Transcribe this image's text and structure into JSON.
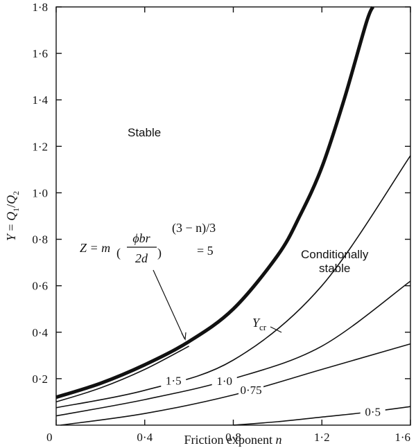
{
  "chart_data": {
    "type": "line",
    "xlabel": "Friction exponent n",
    "ylabel": "Y = Q1/Q2",
    "xlim": [
      0,
      1.6
    ],
    "ylim": [
      0,
      1.8
    ],
    "grid": false,
    "x_ticks": [
      {
        "value": 0,
        "label": "0"
      },
      {
        "value": 0.4,
        "label": "0·4"
      },
      {
        "value": 0.8,
        "label": "0·8"
      },
      {
        "value": 1.2,
        "label": "1·2"
      },
      {
        "value": 1.6,
        "label": "1·6"
      }
    ],
    "y_ticks": [
      {
        "value": 0.2,
        "label": "0·2"
      },
      {
        "value": 0.4,
        "label": "0·4"
      },
      {
        "value": 0.6,
        "label": "0·6"
      },
      {
        "value": 0.8,
        "label": "0·8"
      },
      {
        "value": 1.0,
        "label": "1·0"
      },
      {
        "value": 1.2,
        "label": "1·2"
      },
      {
        "value": 1.4,
        "label": "1·4"
      },
      {
        "value": 1.6,
        "label": "1·6"
      },
      {
        "value": 1.8,
        "label": "1·8"
      }
    ],
    "series": [
      {
        "name": "Ycr",
        "x": [
          0,
          0.2,
          0.4,
          0.6,
          0.8,
          1.0,
          1.1,
          1.2,
          1.3,
          1.4,
          1.43
        ],
        "y": [
          0.12,
          0.18,
          0.26,
          0.36,
          0.5,
          0.73,
          0.9,
          1.11,
          1.4,
          1.73,
          1.8
        ]
      },
      {
        "name": "5",
        "x": [
          0,
          0.2,
          0.4,
          0.6
        ],
        "y": [
          0.1,
          0.16,
          0.24,
          0.34
        ]
      },
      {
        "name": "1·5",
        "x": [
          0,
          0.4,
          0.8,
          1.2,
          1.6
        ],
        "y": [
          0.075,
          0.15,
          0.28,
          0.6,
          1.16
        ]
      },
      {
        "name": "1·0",
        "x": [
          0,
          0.4,
          0.8,
          1.2,
          1.6
        ],
        "y": [
          0.04,
          0.11,
          0.2,
          0.34,
          0.62
        ]
      },
      {
        "name": "0·75",
        "x": [
          0.02,
          0.4,
          0.8,
          1.2,
          1.6
        ],
        "y": [
          0,
          0.05,
          0.13,
          0.24,
          0.35
        ]
      },
      {
        "name": "0·5",
        "x": [
          0.8,
          1.0,
          1.2,
          1.4,
          1.6
        ],
        "y": [
          0,
          0.015,
          0.035,
          0.055,
          0.08
        ]
      }
    ],
    "annotations": {
      "stable": "Stable",
      "ycr_symbol": "Y",
      "ycr_sub": "cr",
      "conditional_1": "Conditionally",
      "conditional_2": "stable",
      "formula": {
        "z": "Z = m",
        "numerator": "ϕbr",
        "denominator": "2d",
        "exponent": "(3 − n)/3",
        "equals": "= 5"
      }
    },
    "y_title_parts": {
      "var": "Y",
      "eq": " = ",
      "q": "Q",
      "sub1": "1",
      "slash": "/",
      "sub2": "2"
    },
    "x_title_parts": {
      "text": "Friction exponent ",
      "var": "n"
    }
  }
}
